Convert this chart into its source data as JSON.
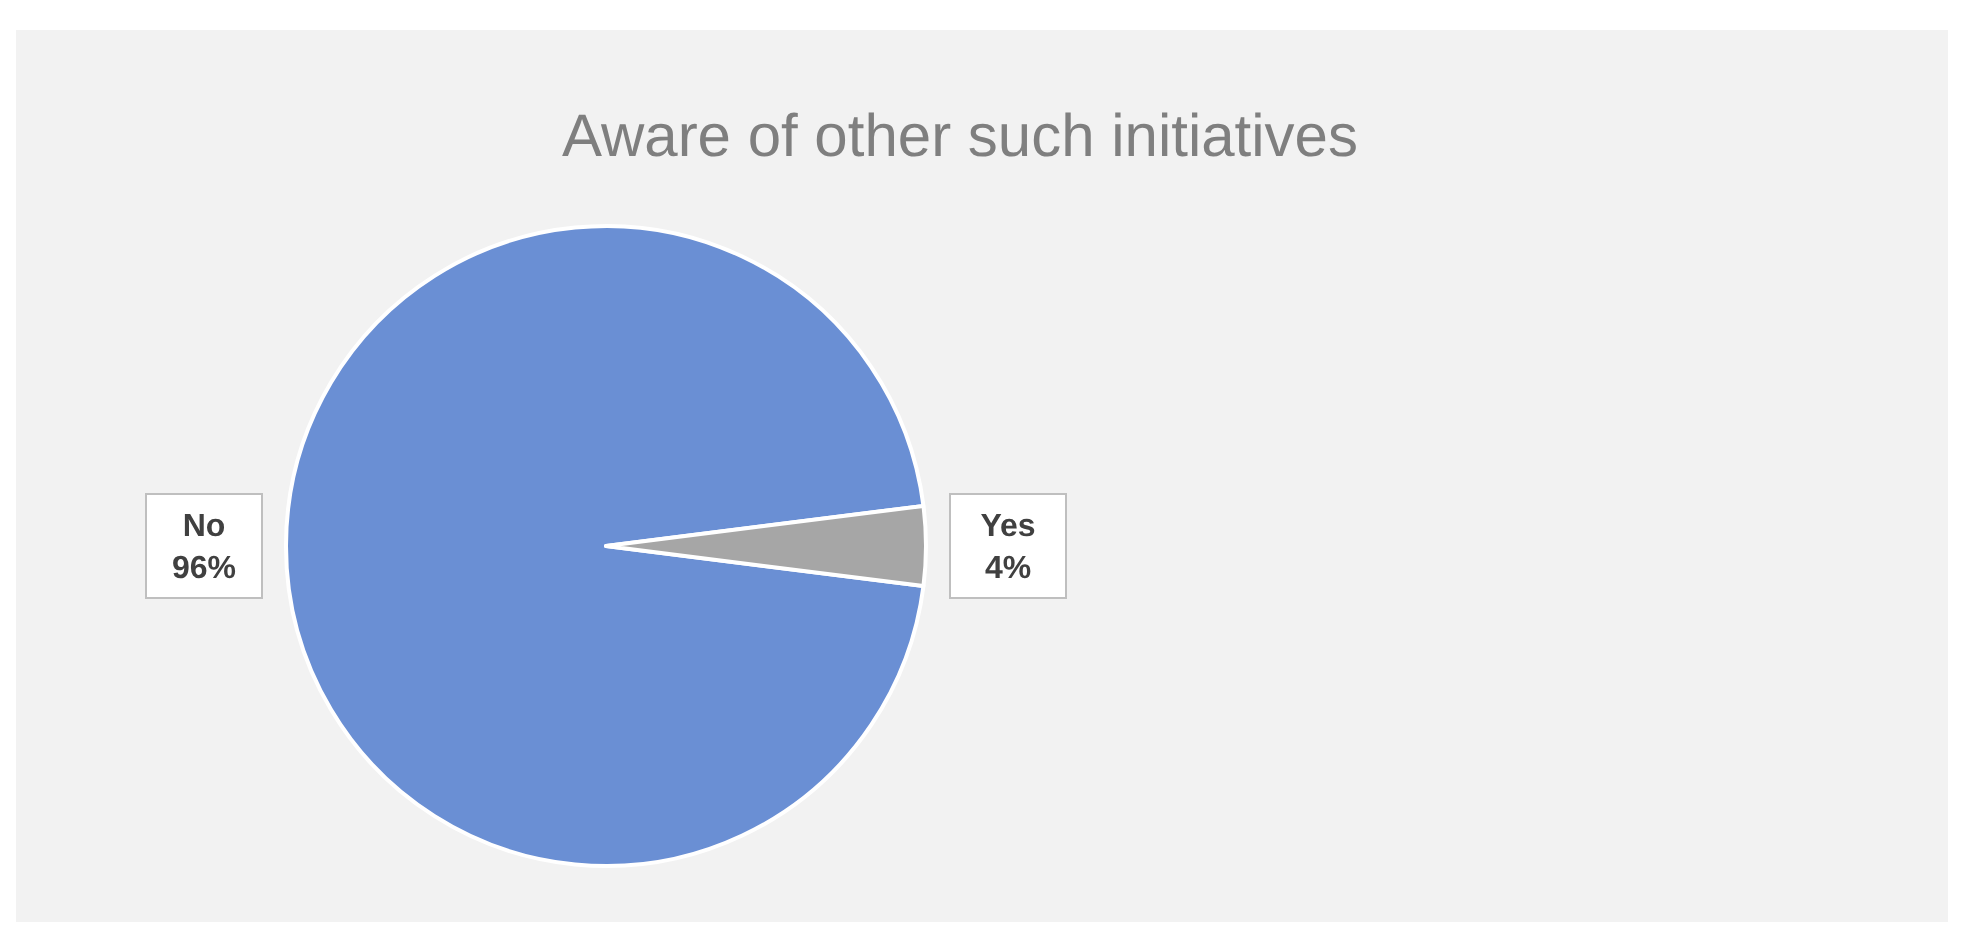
{
  "chart_data": {
    "type": "pie",
    "title": "Aware of other such initiatives",
    "categories": [
      "No",
      "Yes"
    ],
    "values": [
      96,
      4
    ],
    "value_labels": [
      "96%",
      "4%"
    ],
    "colors": [
      "#6a8fd4",
      "#a6a6a6"
    ]
  }
}
